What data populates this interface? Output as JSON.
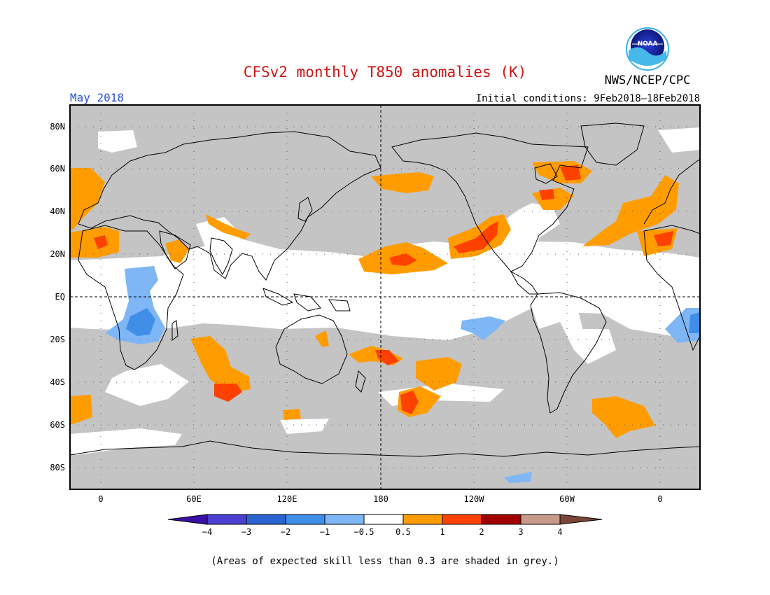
{
  "title": "CFSv2 monthly T850 anomalies (K)",
  "month": "May 2018",
  "initial_conditions": "Initial conditions: 9Feb2018–18Feb2018",
  "agency": "NWS/NCEP/CPC",
  "logo_text": "NOAA",
  "footnote": "(Areas of expected skill less than 0.3 are shaded in grey.)",
  "lat_labels": [
    "80N",
    "60N",
    "40N",
    "20N",
    "EQ",
    "20S",
    "40S",
    "60S",
    "80S"
  ],
  "lon_labels": [
    "0",
    "60E",
    "120E",
    "180",
    "120W",
    "60W",
    "0"
  ],
  "colorbar": {
    "tick_labels": [
      "−4",
      "−3",
      "−2",
      "−1",
      "−0.5",
      "0.5",
      "1",
      "2",
      "3",
      "4"
    ],
    "colors": [
      "#3b0fa6",
      "#4a3fd0",
      "#2a63d2",
      "#3f8ee8",
      "#7fb6f5",
      "#ffffff",
      "#ff9d00",
      "#ff4100",
      "#a00000",
      "#c89a8a",
      "#7a4638"
    ]
  },
  "colors": {
    "grey_low_skill": "#c4c4c4",
    "near_zero": "#ffffff",
    "title_red": "#d11414",
    "month_blue": "#2a4fd8"
  }
}
